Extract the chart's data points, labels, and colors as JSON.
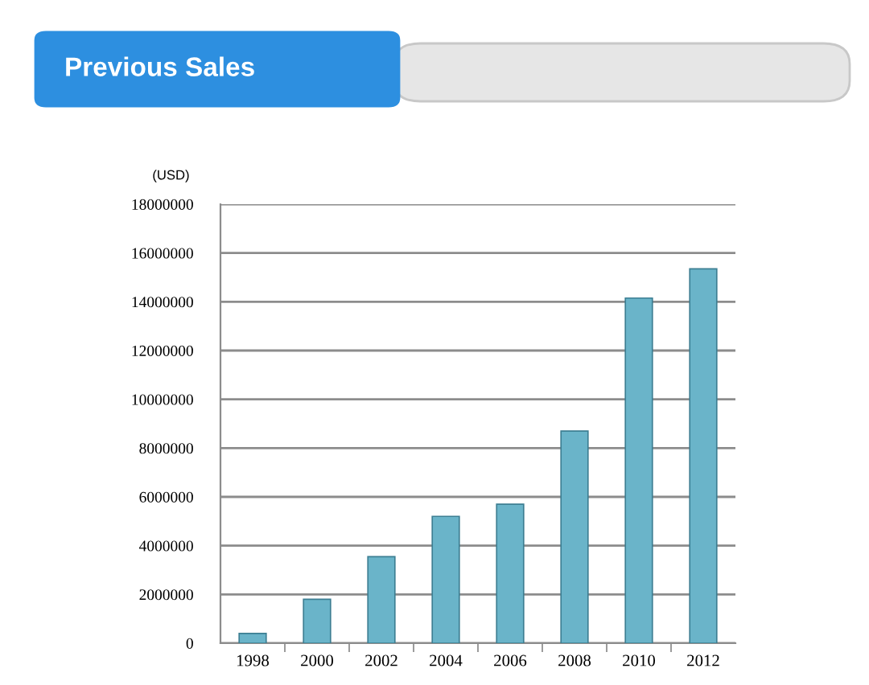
{
  "chart_data": {
    "type": "bar",
    "title": "Previous Sales",
    "ylabel": "(USD)",
    "categories": [
      "1998",
      "2000",
      "2002",
      "2004",
      "2006",
      "2008",
      "2010",
      "2012"
    ],
    "values": [
      400000,
      1800000,
      3550000,
      5200000,
      5700000,
      8700000,
      14150000,
      15350000
    ],
    "color": "#6ab4c9",
    "ylim": [
      0,
      18000000
    ],
    "yticks": [
      0,
      2000000,
      4000000,
      6000000,
      8000000,
      10000000,
      12000000,
      14000000,
      16000000,
      18000000
    ],
    "grid": "y"
  }
}
